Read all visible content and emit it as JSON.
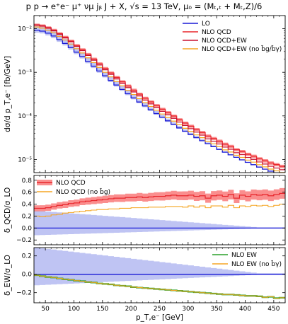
{
  "title": "p p → e⁺e⁻ μ⁺ νμ jᵦ J + X, √s = 13 TeV, μ₀ = (Mₜ,ₜ + Mₜ,Z)/6",
  "chart_data": [
    {
      "type": "line",
      "panel": "main",
      "ylabel": "dσ/d p_T,e⁻ [fb/GeV]",
      "xlim": [
        30,
        470
      ],
      "ylim": [
        5e-06,
        0.02
      ],
      "yscale": "log",
      "yticks": [
        {
          "v": 1e-05,
          "label": "10⁻⁵"
        },
        {
          "v": 0.0001,
          "label": "10⁻⁴"
        },
        {
          "v": 0.001,
          "label": "10⁻³"
        },
        {
          "v": 0.01,
          "label": "10⁻²"
        }
      ],
      "bin_width": 10,
      "x_start": 30,
      "lo_ref": [
        0.0092,
        0.0088,
        0.0079,
        0.0068,
        0.0056,
        0.0046,
        0.0037,
        0.0029,
        0.0023,
        0.00178,
        0.00138,
        0.00107,
        0.00083,
        0.00065,
        0.00051,
        0.000405,
        0.000322,
        0.000258,
        0.000208,
        0.000169,
        0.000138,
        0.000113,
        9.3e-05,
        7.7e-05,
        6.4e-05,
        5.3e-05,
        4.45e-05,
        3.75e-05,
        3.17e-05,
        2.7e-05,
        2.3e-05,
        1.97e-05,
        1.7e-05,
        1.47e-05,
        1.28e-05,
        1.12e-05,
        9.8e-06,
        8.6e-06,
        7.6e-06,
        6.7e-06,
        6e-06,
        5.4e-06,
        4.9e-06,
        4.4e-06
      ],
      "series": [
        {
          "name": "LO",
          "color": "#1a1ad6",
          "band_color": "#aab0ef"
        },
        {
          "name": "NLO QCD",
          "color": "#e8262c",
          "band_color": "#f97a7a"
        },
        {
          "name": "NLO QCD+EW",
          "color": "#c8102e"
        },
        {
          "name": "NLO QCD+EW (no b̄g/b̄γ)",
          "color": "#f5a623"
        }
      ]
    },
    {
      "type": "line",
      "panel": "ratio_qcd",
      "ylabel": "δ_QCD/σ_LO",
      "xlim": [
        30,
        470
      ],
      "ylim": [
        -0.28,
        0.88
      ],
      "yticks": [
        {
          "v": -0.2,
          "label": "−0.2"
        },
        {
          "v": 0.0,
          "label": "0.0"
        },
        {
          "v": 0.2,
          "label": "0.2"
        },
        {
          "v": 0.4,
          "label": "0.4"
        },
        {
          "v": 0.6,
          "label": "0.6"
        },
        {
          "v": 0.8,
          "label": "0.8"
        }
      ],
      "series": [
        {
          "name": "NLO QCD",
          "color": "#e8262c",
          "band_color": "#f97a7a",
          "values": [
            0.33,
            0.33,
            0.34,
            0.36,
            0.38,
            0.39,
            0.41,
            0.42,
            0.44,
            0.45,
            0.46,
            0.47,
            0.48,
            0.49,
            0.5,
            0.5,
            0.51,
            0.51,
            0.52,
            0.51,
            0.52,
            0.53,
            0.53,
            0.54,
            0.55,
            0.54,
            0.54,
            0.55,
            0.53,
            0.54,
            0.5,
            0.54,
            0.55,
            0.53,
            0.56,
            0.5,
            0.55,
            0.53,
            0.56,
            0.55,
            0.56,
            0.54,
            0.56,
            0.58
          ]
        },
        {
          "name": "NLO QCD (no b̄g)",
          "color": "#f5a623",
          "values": [
            0.2,
            0.19,
            0.2,
            0.22,
            0.23,
            0.25,
            0.26,
            0.27,
            0.28,
            0.29,
            0.3,
            0.31,
            0.31,
            0.32,
            0.32,
            0.33,
            0.33,
            0.34,
            0.34,
            0.34,
            0.35,
            0.35,
            0.35,
            0.36,
            0.36,
            0.36,
            0.35,
            0.37,
            0.35,
            0.37,
            0.34,
            0.37,
            0.37,
            0.35,
            0.38,
            0.34,
            0.37,
            0.36,
            0.38,
            0.37,
            0.38,
            0.36,
            0.38,
            0.4
          ]
        },
        {
          "name": "LO",
          "color": "#1a1ad6",
          "band_color": "#aab0ef",
          "values": "zero"
        }
      ]
    },
    {
      "type": "line",
      "panel": "ratio_ew",
      "xlabel": "p_T,e⁻ [GeV]",
      "ylabel": "δ_EW/σ_LO",
      "xlim": [
        30,
        470
      ],
      "ylim": [
        -0.31,
        0.29
      ],
      "xticks": [
        50,
        100,
        150,
        200,
        250,
        300,
        350,
        400,
        450
      ],
      "yticks": [
        {
          "v": -0.2,
          "label": "−0.2"
        },
        {
          "v": 0.0,
          "label": "0.0"
        },
        {
          "v": 0.2,
          "label": "0.2"
        }
      ],
      "series": [
        {
          "name": "NLO EW",
          "color": "#2ca02c",
          "values": [
            -0.01,
            -0.02,
            -0.03,
            -0.035,
            -0.045,
            -0.055,
            -0.06,
            -0.07,
            -0.075,
            -0.085,
            -0.09,
            -0.1,
            -0.105,
            -0.11,
            -0.12,
            -0.125,
            -0.13,
            -0.14,
            -0.145,
            -0.15,
            -0.155,
            -0.16,
            -0.165,
            -0.17,
            -0.175,
            -0.18,
            -0.185,
            -0.19,
            -0.195,
            -0.2,
            -0.205,
            -0.21,
            -0.215,
            -0.22,
            -0.22,
            -0.225,
            -0.23,
            -0.235,
            -0.235,
            -0.24,
            -0.25,
            -0.245,
            -0.26,
            -0.255
          ]
        },
        {
          "name": "NLO EW (no b̄γ)",
          "color": "#f5a623",
          "values": [
            -0.01,
            -0.02,
            -0.03,
            -0.035,
            -0.045,
            -0.055,
            -0.06,
            -0.07,
            -0.075,
            -0.085,
            -0.09,
            -0.1,
            -0.105,
            -0.11,
            -0.12,
            -0.125,
            -0.13,
            -0.14,
            -0.145,
            -0.15,
            -0.155,
            -0.16,
            -0.165,
            -0.17,
            -0.175,
            -0.18,
            -0.185,
            -0.19,
            -0.195,
            -0.2,
            -0.205,
            -0.21,
            -0.215,
            -0.22,
            -0.22,
            -0.225,
            -0.23,
            -0.235,
            -0.235,
            -0.24,
            -0.25,
            -0.245,
            -0.26,
            -0.255
          ]
        },
        {
          "name": "LO",
          "color": "#1a1ad6",
          "band_color": "#aab0ef",
          "values": "zero"
        }
      ]
    }
  ]
}
